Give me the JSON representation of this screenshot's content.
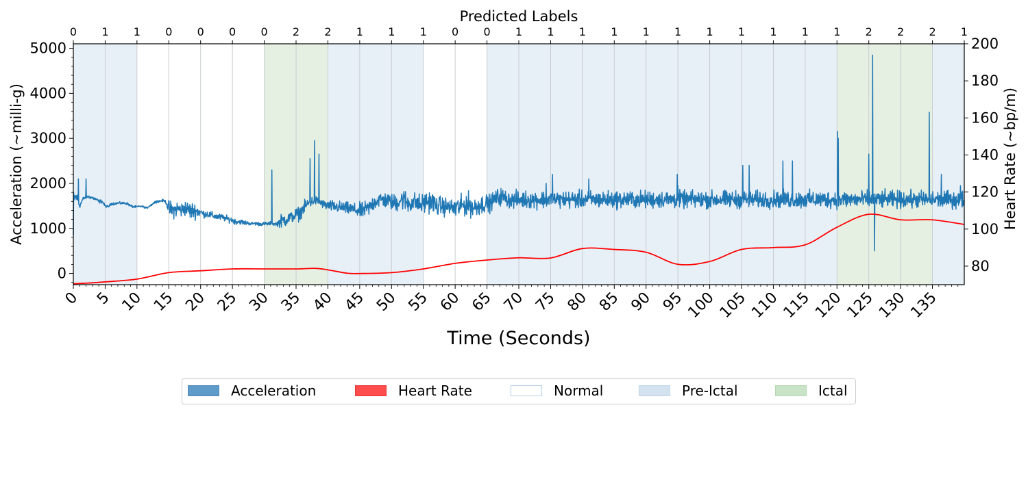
{
  "chart_data": {
    "type": "line",
    "top_title": "Predicted Labels",
    "xlabel": "Time (Seconds)",
    "ylabel_left": "Acceleration (~milli-g)",
    "ylabel_right": "Heart Rate (~bp/m)",
    "xlim": [
      0,
      140
    ],
    "ylim_left": [
      -250,
      5100
    ],
    "ylim_right": [
      70,
      200
    ],
    "x_ticks": [
      0,
      5,
      10,
      15,
      20,
      25,
      30,
      35,
      40,
      45,
      50,
      55,
      60,
      65,
      70,
      75,
      80,
      85,
      90,
      95,
      100,
      105,
      110,
      115,
      120,
      125,
      130,
      135
    ],
    "y_ticks_left": [
      0,
      1000,
      2000,
      3000,
      4000,
      5000
    ],
    "y_ticks_right": [
      80,
      100,
      120,
      140,
      160,
      180,
      200
    ],
    "predicted_labels": [
      0,
      1,
      1,
      0,
      0,
      0,
      0,
      2,
      2,
      1,
      1,
      1,
      0,
      0,
      1,
      1,
      1,
      1,
      1,
      1,
      1,
      1,
      1,
      1,
      1,
      2,
      2,
      2,
      1
    ],
    "label_states": [
      "Normal",
      "Pre-Ictal",
      "Ictal"
    ],
    "state_colors": {
      "Normal": "#ffffff",
      "Pre-Ictal": "#c9daed",
      "Ictal": "#c8e3c5"
    },
    "shaded_segments": [
      {
        "start": 0,
        "end": 10,
        "state": "Pre-Ictal"
      },
      {
        "start": 10,
        "end": 30,
        "state": "Normal"
      },
      {
        "start": 30,
        "end": 40,
        "state": "Ictal"
      },
      {
        "start": 40,
        "end": 55,
        "state": "Pre-Ictal"
      },
      {
        "start": 55,
        "end": 65,
        "state": "Normal"
      },
      {
        "start": 65,
        "end": 120,
        "state": "Pre-Ictal"
      },
      {
        "start": 120,
        "end": 135,
        "state": "Ictal"
      },
      {
        "start": 135,
        "end": 140,
        "state": "Pre-Ictal"
      }
    ],
    "series": [
      {
        "name": "Acceleration",
        "axis": "left",
        "color": "#1f77b4",
        "x_step": 0.5,
        "baseline": [
          1650,
          1700,
          1500,
          1650,
          1700,
          1700,
          1680,
          1650,
          1600,
          1600,
          1500,
          1480,
          1550,
          1550,
          1560,
          1560,
          1560,
          1550,
          1500,
          1480,
          1480,
          1490,
          1480,
          1450,
          1500,
          1550,
          1600,
          1600,
          1620,
          1600,
          1450,
          1400,
          1420,
          1440,
          1400,
          1450,
          1420,
          1380,
          1400,
          1380,
          1360,
          1320,
          1320,
          1300,
          1280,
          1260,
          1250,
          1240,
          1220,
          1200,
          1180,
          1150,
          1150,
          1140,
          1120,
          1120,
          1100,
          1110,
          1100,
          1100,
          1100,
          1100,
          1110,
          1100,
          1100,
          1150,
          1180,
          1200,
          1240,
          1260,
          1300,
          1320,
          1420,
          1500,
          1560,
          1600,
          1620,
          1600,
          1560,
          1520,
          1500,
          1500,
          1480,
          1480,
          1460,
          1460,
          1440,
          1440,
          1420,
          1400,
          1380,
          1400,
          1420,
          1460,
          1540,
          1600,
          1640,
          1640,
          1620,
          1620,
          1580,
          1560,
          1600,
          1640,
          1640,
          1560,
          1560,
          1600,
          1560,
          1520,
          1550,
          1600,
          1600,
          1580,
          1500,
          1500,
          1500,
          1480,
          1480,
          1450,
          1450,
          1460,
          1500,
          1520,
          1540,
          1500,
          1460,
          1500,
          1520,
          1550,
          1550,
          1560,
          1620,
          1680,
          1700,
          1700,
          1660,
          1640,
          1620,
          1640
        ],
        "noise": [
          250,
          200,
          80,
          60,
          60,
          60,
          60,
          60,
          60,
          60,
          40,
          40,
          40,
          40,
          40,
          40,
          40,
          40,
          40,
          40,
          30,
          30,
          30,
          30,
          40,
          40,
          40,
          40,
          40,
          40,
          250,
          280,
          260,
          260,
          250,
          260,
          260,
          280,
          260,
          240,
          120,
          120,
          120,
          120,
          120,
          110,
          110,
          110,
          100,
          100,
          100,
          100,
          80,
          80,
          80,
          60,
          60,
          60,
          60,
          60,
          60,
          60,
          60,
          60,
          60,
          200,
          240,
          200,
          180,
          180,
          240,
          220,
          200,
          200,
          180,
          160,
          150,
          150,
          140,
          140,
          180,
          180,
          200,
          200,
          200,
          180,
          200,
          200,
          200,
          220,
          260,
          260,
          260,
          260,
          260,
          260,
          260,
          260,
          260,
          240,
          260,
          300,
          320,
          340,
          340,
          340,
          320,
          300,
          320,
          330,
          340,
          340,
          340,
          340,
          320,
          300,
          300,
          300,
          280,
          260,
          400,
          360,
          340,
          360,
          380,
          360,
          340,
          330,
          320,
          310,
          280,
          280,
          280,
          280,
          280,
          280,
          260,
          260,
          260,
          280
        ],
        "spikes": [
          [
            0.8,
            2100
          ],
          [
            2.0,
            2100
          ],
          [
            31.2,
            2300
          ],
          [
            37.2,
            2550
          ],
          [
            37.9,
            2950
          ],
          [
            38.6,
            2650
          ],
          [
            67.6,
            1750
          ],
          [
            69.4,
            1600
          ],
          [
            74.3,
            2000
          ],
          [
            75.3,
            2200
          ],
          [
            81.0,
            2100
          ],
          [
            94.9,
            2200
          ],
          [
            95.0,
            1950
          ],
          [
            105.2,
            2400
          ],
          [
            106.2,
            2400
          ],
          [
            111.5,
            2500
          ],
          [
            113.0,
            2500
          ],
          [
            120.1,
            3150
          ],
          [
            120.2,
            3000
          ],
          [
            125.0,
            2650
          ],
          [
            125.6,
            4850
          ],
          [
            125.9,
            500
          ],
          [
            134.5,
            3580
          ],
          [
            136.4,
            2200
          ],
          [
            139.4,
            1950
          ]
        ]
      },
      {
        "name": "Heart Rate",
        "axis": "right",
        "color": "#ff0000",
        "x": [
          0,
          3,
          5,
          10,
          15,
          20,
          25,
          30,
          35,
          38,
          40,
          43,
          45,
          50,
          55,
          60,
          65,
          70,
          75,
          80,
          85,
          90,
          95,
          100,
          105,
          110,
          115,
          120,
          125,
          130,
          135,
          140
        ],
        "values": [
          70.5,
          71,
          71.5,
          73,
          76.5,
          77.5,
          78.5,
          78.5,
          78.5,
          78.8,
          78,
          76.2,
          76,
          76.5,
          78.5,
          81.5,
          83.3,
          84.5,
          84.4,
          89.5,
          89,
          87.5,
          81,
          82.5,
          89,
          90,
          91.5,
          101,
          108,
          105,
          105,
          102.5
        ]
      }
    ],
    "legend": [
      {
        "label": "Acceleration",
        "swatch": "#5f9bc9",
        "border": "#4d88bb"
      },
      {
        "label": "Heart Rate",
        "swatch": "#ff4c4c",
        "border": "#e53535"
      },
      {
        "label": "Normal",
        "swatch": "#ffffff",
        "border": "#b6cfe4"
      },
      {
        "label": "Pre-Ictal",
        "swatch": "#d2e2ef",
        "border": "#c2d6e8"
      },
      {
        "label": "Ictal",
        "swatch": "#c9e3c6",
        "border": "#b5d7b1"
      }
    ],
    "legend_placement": "bottom-center",
    "grid": "vertical"
  }
}
